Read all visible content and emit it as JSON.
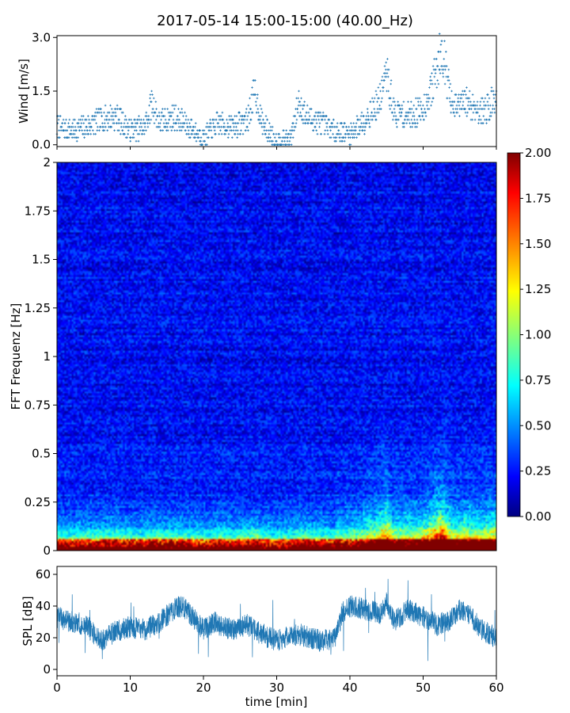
{
  "title": "2017-05-14 15:00-15:00 (40.00_Hz)",
  "colors": {
    "series": "#1f77b4",
    "colormap": [
      "#000080",
      "#0000ff",
      "#00ffff",
      "#ffff00",
      "#ff0000",
      "#800000"
    ]
  },
  "chart_data": [
    {
      "type": "scatter",
      "panel": "wind",
      "ylabel": "Wind [m/s]",
      "xlim": [
        0,
        60
      ],
      "ylim": [
        -0.05,
        3.05
      ],
      "yticks": [
        "0.0",
        "1.5",
        "3.0"
      ],
      "ytick_values": [
        0,
        1.5,
        3.0
      ],
      "xtick_values": [
        0,
        10,
        20,
        30,
        40,
        50,
        60
      ],
      "marker": "+",
      "series": [
        {
          "x": [
            0,
            2,
            4,
            6,
            8,
            10,
            12,
            13,
            14,
            16,
            18,
            20,
            22,
            24,
            26,
            27,
            28,
            30,
            32,
            33,
            34,
            36,
            38,
            40,
            42,
            44,
            45,
            46,
            48,
            50,
            51,
            52,
            52.5,
            54,
            56,
            58,
            60
          ],
          "y": [
            0.5,
            0.4,
            0.5,
            0.7,
            0.8,
            0.4,
            0.5,
            1.2,
            0.6,
            0.8,
            0.5,
            0.2,
            0.6,
            0.5,
            0.7,
            1.5,
            0.6,
            0.1,
            0.2,
            1.2,
            0.8,
            0.6,
            0.4,
            0.3,
            0.7,
            1.2,
            2.0,
            0.9,
            0.8,
            1.0,
            1.5,
            2.2,
            2.8,
            1.0,
            1.2,
            0.9,
            1.3
          ]
        }
      ]
    },
    {
      "type": "heatmap",
      "panel": "spectrogram",
      "ylabel": "FFT Frequenz [Hz]",
      "xlim": [
        0,
        60
      ],
      "ylim": [
        0,
        2
      ],
      "yticks": [
        "0",
        "0.25",
        "0.5",
        "0.75",
        "1",
        "1.25",
        "1.5",
        "1.75",
        "2"
      ],
      "ytick_values": [
        0,
        0.25,
        0.5,
        0.75,
        1,
        1.25,
        1.5,
        1.75,
        2
      ],
      "colorbar": {
        "range": [
          0,
          2
        ],
        "ticks": [
          "0.00",
          "0.25",
          "0.50",
          "0.75",
          "1.00",
          "1.25",
          "1.50",
          "1.75",
          "2.00"
        ],
        "tick_values": [
          0,
          0.25,
          0.5,
          0.75,
          1,
          1.25,
          1.5,
          1.75,
          2
        ]
      },
      "cols": 240,
      "rows": 200,
      "seed": 20170514
    },
    {
      "type": "line",
      "panel": "spl",
      "ylabel": "SPL [dB]",
      "xlabel": "time [min]",
      "xlim": [
        0,
        60
      ],
      "ylim": [
        -4,
        65
      ],
      "yticks": [
        "0",
        "20",
        "40",
        "60"
      ],
      "ytick_values": [
        0,
        20,
        40,
        60
      ],
      "xticks": [
        "0",
        "10",
        "20",
        "30",
        "40",
        "50",
        "60"
      ],
      "xtick_values": [
        0,
        10,
        20,
        30,
        40,
        50,
        60
      ],
      "series": [
        {
          "x": [
            0,
            2,
            4,
            6,
            8,
            10,
            12,
            14,
            16,
            17,
            18,
            20,
            21.5,
            22,
            24,
            26,
            28,
            30,
            32,
            34,
            36,
            38,
            39,
            40,
            42,
            44,
            45,
            46,
            48,
            50,
            52,
            54,
            55,
            56,
            58,
            60
          ],
          "y": [
            33,
            30,
            28,
            18,
            24,
            27,
            25,
            30,
            38,
            40,
            36,
            25,
            30,
            28,
            25,
            28,
            22,
            18,
            22,
            21,
            18,
            20,
            36,
            40,
            38,
            35,
            42,
            30,
            38,
            33,
            28,
            32,
            38,
            36,
            25,
            20
          ]
        }
      ]
    }
  ]
}
